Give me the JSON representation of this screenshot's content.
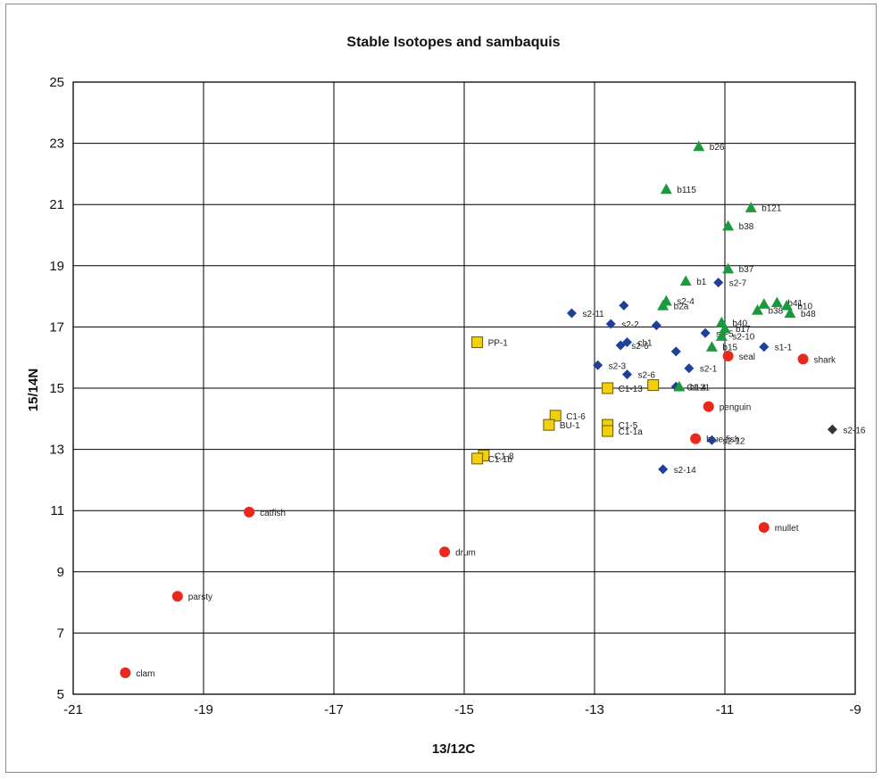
{
  "chart_data": {
    "type": "scatter",
    "title": "Stable Isotopes and sambaquis",
    "xlabel": "13/12C",
    "ylabel": "15/14N",
    "xlim": [
      -21,
      -9
    ],
    "ylim": [
      5,
      25
    ],
    "x_ticks": [
      "-21",
      "-19",
      "-17",
      "-15",
      "-13",
      "-11",
      "-9"
    ],
    "y_ticks": [
      "5",
      "7",
      "9",
      "11",
      "13",
      "15",
      "17",
      "19",
      "21",
      "23",
      "25"
    ],
    "grid": true,
    "legend": "none",
    "series": [
      {
        "marker": "circle",
        "color": "#e8291c",
        "points": [
          {
            "x": -20.2,
            "y": 5.7,
            "label": "clam"
          },
          {
            "x": -19.4,
            "y": 8.2,
            "label": "parsty"
          },
          {
            "x": -18.3,
            "y": 10.95,
            "label": "catfish"
          },
          {
            "x": -15.3,
            "y": 9.65,
            "label": "drum"
          },
          {
            "x": -11.25,
            "y": 14.4,
            "label": "penguin"
          },
          {
            "x": -10.95,
            "y": 16.05,
            "label": "seal"
          },
          {
            "x": -9.8,
            "y": 15.95,
            "label": "shark"
          },
          {
            "x": -10.4,
            "y": 10.45,
            "label": "mullet"
          },
          {
            "x": -11.45,
            "y": 13.35,
            "label": "blue fish"
          }
        ]
      },
      {
        "marker": "square",
        "color": "#f2d00c",
        "points": [
          {
            "x": -14.8,
            "y": 16.5,
            "label": "PP-1"
          },
          {
            "x": -12.8,
            "y": 15.0,
            "label": "C1-13"
          },
          {
            "x": -12.1,
            "y": 15.1,
            "label": ""
          },
          {
            "x": -13.6,
            "y": 14.1,
            "label": "C1-6"
          },
          {
            "x": -13.7,
            "y": 13.8,
            "label": "BU-1"
          },
          {
            "x": -12.8,
            "y": 13.8,
            "label": "C1-5"
          },
          {
            "x": -12.8,
            "y": 13.6,
            "label": "C1-1a"
          },
          {
            "x": -14.7,
            "y": 12.8,
            "label": "C1-8"
          },
          {
            "x": -14.8,
            "y": 12.7,
            "label": "C1-1b"
          }
        ]
      },
      {
        "marker": "diamond",
        "color": "#1f3f99",
        "points": [
          {
            "x": -13.35,
            "y": 17.45,
            "label": "s2-11"
          },
          {
            "x": -12.75,
            "y": 17.1,
            "label": "s2-2"
          },
          {
            "x": -12.55,
            "y": 17.7,
            "label": ""
          },
          {
            "x": -12.05,
            "y": 17.05,
            "label": ""
          },
          {
            "x": -11.3,
            "y": 16.8,
            "label": "s2-5"
          },
          {
            "x": -12.6,
            "y": 16.4,
            "label": "s2-6"
          },
          {
            "x": -12.5,
            "y": 16.5,
            "label": "ch1"
          },
          {
            "x": -11.75,
            "y": 16.2,
            "label": ""
          },
          {
            "x": -12.95,
            "y": 15.75,
            "label": "s2-3"
          },
          {
            "x": -12.5,
            "y": 15.45,
            "label": "s2-6"
          },
          {
            "x": -11.55,
            "y": 15.65,
            "label": "s2-1"
          },
          {
            "x": -11.1,
            "y": 18.45,
            "label": "s2-7"
          },
          {
            "x": -10.4,
            "y": 16.35,
            "label": "s1-1"
          },
          {
            "x": -11.2,
            "y": 13.3,
            "label": "s2-12"
          },
          {
            "x": -11.95,
            "y": 12.35,
            "label": "s2-14"
          },
          {
            "x": -11.75,
            "y": 15.05,
            "label": "C1-4"
          }
        ]
      },
      {
        "marker": "triangle",
        "color": "#1a9a3c",
        "points": [
          {
            "x": -11.4,
            "y": 22.9,
            "label": "b26"
          },
          {
            "x": -11.9,
            "y": 21.5,
            "label": "b115"
          },
          {
            "x": -10.6,
            "y": 20.9,
            "label": "b121"
          },
          {
            "x": -10.95,
            "y": 20.3,
            "label": "b38"
          },
          {
            "x": -10.95,
            "y": 18.9,
            "label": "b37"
          },
          {
            "x": -11.6,
            "y": 18.5,
            "label": "b1"
          },
          {
            "x": -11.9,
            "y": 17.85,
            "label": "s2-4"
          },
          {
            "x": -11.05,
            "y": 17.15,
            "label": "b40"
          },
          {
            "x": -11.0,
            "y": 16.95,
            "label": "b17"
          },
          {
            "x": -11.05,
            "y": 16.7,
            "label": "s2-10"
          },
          {
            "x": -11.2,
            "y": 16.35,
            "label": "b15"
          },
          {
            "x": -10.5,
            "y": 17.55,
            "label": "b38"
          },
          {
            "x": -10.4,
            "y": 17.75,
            "label": ""
          },
          {
            "x": -10.2,
            "y": 17.8,
            "label": "b41"
          },
          {
            "x": -10.05,
            "y": 17.7,
            "label": "b10"
          },
          {
            "x": -10.0,
            "y": 17.45,
            "label": "b48"
          },
          {
            "x": -11.7,
            "y": 15.05,
            "label": "b121"
          },
          {
            "x": -11.95,
            "y": 17.7,
            "label": "b2a"
          }
        ]
      },
      {
        "marker": "diamond",
        "color": "#333333",
        "points": [
          {
            "x": -9.35,
            "y": 13.65,
            "label": "s2-16"
          }
        ]
      }
    ]
  }
}
